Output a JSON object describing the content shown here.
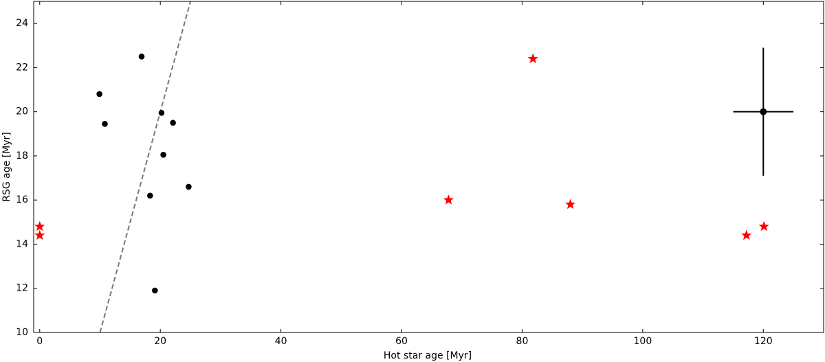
{
  "chart_data": {
    "type": "scatter",
    "xlabel": "Hot star age [Myr]",
    "ylabel": "RSG age [Myr]",
    "xlim": [
      -1,
      130
    ],
    "ylim": [
      10,
      25
    ],
    "xticks": [
      0,
      20,
      40,
      60,
      80,
      100,
      120
    ],
    "yticks": [
      10,
      12,
      14,
      16,
      18,
      20,
      22,
      24
    ],
    "series": [
      {
        "color": "#000000",
        "marker": "circle",
        "x": [
          9.9,
          10.8,
          16.9,
          20.2,
          22.1,
          20.5,
          24.7,
          18.3,
          19.1
        ],
        "y": [
          20.8,
          19.45,
          22.5,
          19.95,
          19.5,
          18.05,
          16.6,
          16.2,
          11.9
        ]
      },
      {
        "color": "#ff0000",
        "marker": "star",
        "x": [
          0,
          0,
          67.8,
          81.8,
          88.0,
          117.2,
          120.1
        ],
        "y": [
          14.8,
          14.4,
          16.0,
          22.4,
          15.8,
          14.4,
          14.8
        ]
      }
    ],
    "error_point": {
      "x": 120,
      "y": 20,
      "xerr": 5,
      "yerr": 2.9,
      "color": "#000000"
    },
    "reference_line": {
      "x": [
        10,
        25
      ],
      "y": [
        10,
        25
      ],
      "color": "#777777",
      "dashed": true
    }
  }
}
